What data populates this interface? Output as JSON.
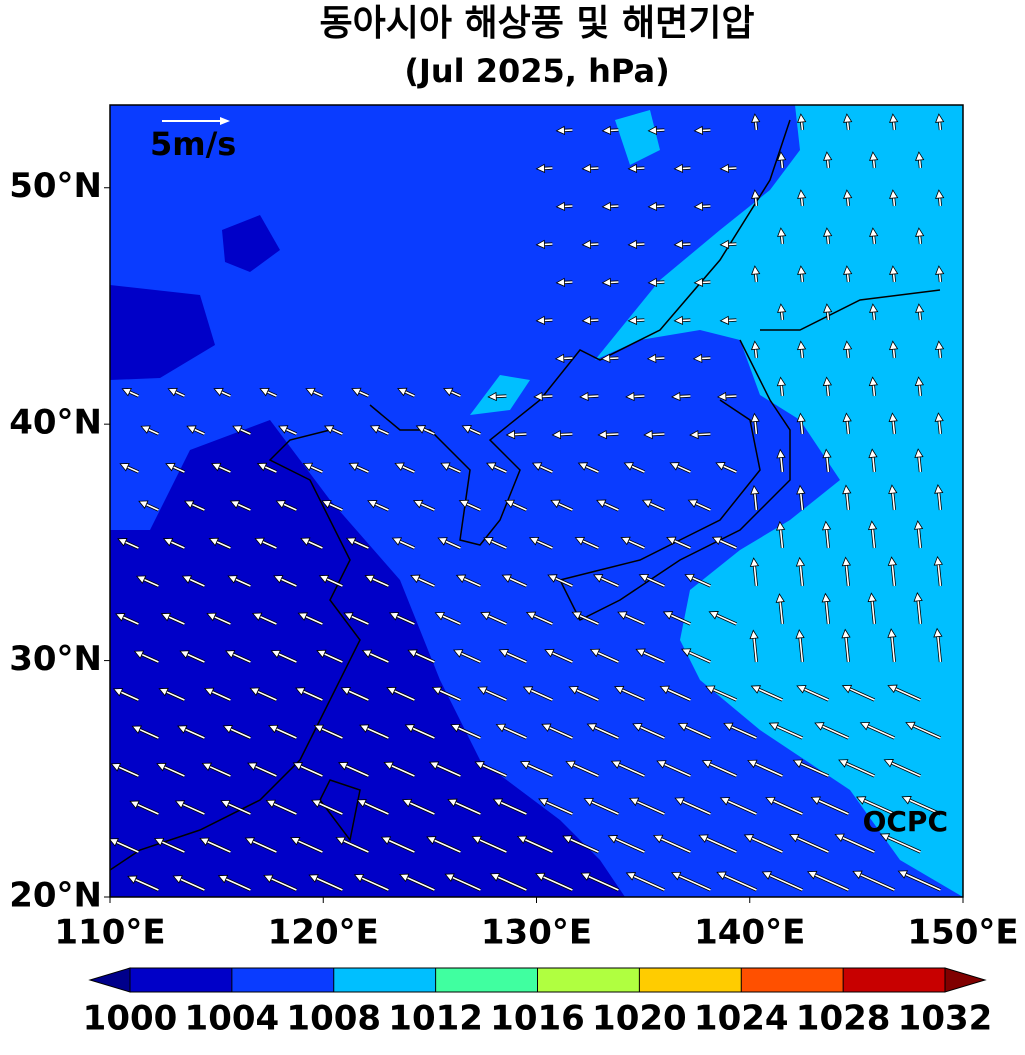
{
  "map": {
    "title": "동아시아 해상풍 및 해면기압",
    "subtitle": "(Jul 2025, hPa)",
    "scale_label": "5m/s",
    "watermark": "OCPC",
    "xlim": [
      110,
      150
    ],
    "xticks": [
      {
        "value": 110,
        "label": "110°E"
      },
      {
        "value": 120,
        "label": "120°E"
      },
      {
        "value": 130,
        "label": "130°E"
      },
      {
        "value": 140,
        "label": "140°E"
      },
      {
        "value": 150,
        "label": "150°E"
      }
    ],
    "ylim": [
      20,
      53.5
    ],
    "yticks": [
      {
        "value": 20,
        "label": "20°N"
      },
      {
        "value": 30,
        "label": "30°N"
      },
      {
        "value": 40,
        "label": "40°N"
      },
      {
        "value": 50,
        "label": "50°N"
      }
    ],
    "colorbar": {
      "levels": [
        1000,
        1004,
        1008,
        1012,
        1016,
        1020,
        1024,
        1028,
        1032
      ],
      "colors": [
        "#0000c8",
        "#0a3cff",
        "#00bfff",
        "#40ffa0",
        "#b0ff40",
        "#ffcc00",
        "#ff5000",
        "#c80000"
      ],
      "under_color": "#00008b",
      "over_color": "#800000"
    }
  }
}
